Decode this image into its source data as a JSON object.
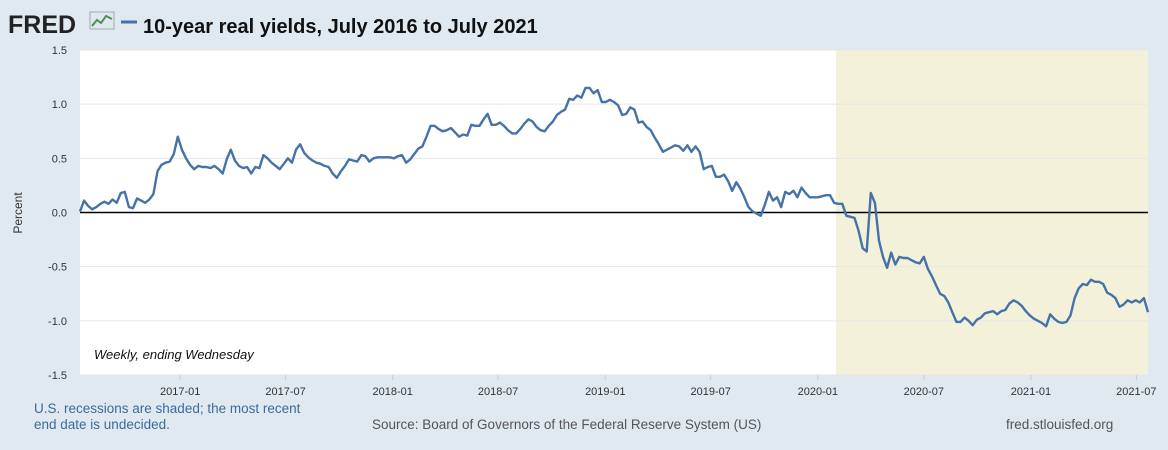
{
  "header": {
    "brand": "FRED",
    "title": "10-year real yields, July 2016 to July 2021"
  },
  "colors": {
    "page_background": "#e1e9f0",
    "plot_background": "#ffffff",
    "series_line": "#4572a7",
    "recession_shade": "#f3f1da",
    "zero_line": "#000000",
    "footer_text": "#3a6aa0"
  },
  "footer": {
    "recession_note_line1": "U.S. recessions are shaded; the most recent",
    "recession_note_line2": "end date is undecided.",
    "source": "Source: Board of Governors of the Federal Reserve System (US)",
    "site": "fred.stlouisfed.org"
  },
  "chart_data": {
    "type": "line",
    "title": "10-year real yields, July 2016 to July 2021",
    "xlabel": "",
    "ylabel": "Percent",
    "annotation": "Weekly, ending Wednesday",
    "ylim": [
      -1.5,
      1.5
    ],
    "xlim": [
      "2016-07-13",
      "2021-07-21"
    ],
    "y_ticks": [
      1.5,
      1.0,
      0.5,
      0.0,
      -0.5,
      -1.0,
      -1.5
    ],
    "y_tick_labels": [
      "1.5",
      "1.0",
      "0.5",
      "0.0",
      "-0.5",
      "-1.0",
      "-1.5"
    ],
    "x_ticks": [
      "2017-01-01",
      "2017-07-01",
      "2018-01-01",
      "2018-07-01",
      "2019-01-01",
      "2019-07-01",
      "2020-01-01",
      "2020-07-01",
      "2021-01-01",
      "2021-07-01"
    ],
    "x_tick_labels": [
      "2017-01",
      "2017-07",
      "2018-01",
      "2018-07",
      "2019-01",
      "2019-07",
      "2020-01",
      "2020-07",
      "2021-01",
      "2021-07"
    ],
    "grid": true,
    "legend": "none",
    "recession": {
      "start": "2020-02-01",
      "end": "2021-07-21"
    },
    "series": [
      {
        "name": "10-year real yields, July 2016 to July 2021",
        "points": [
          [
            "2016-07-13",
            0.01
          ],
          [
            "2016-07-20",
            0.11
          ],
          [
            "2016-07-27",
            0.06
          ],
          [
            "2016-08-03",
            0.03
          ],
          [
            "2016-08-10",
            0.05
          ],
          [
            "2016-08-17",
            0.08
          ],
          [
            "2016-08-24",
            0.1
          ],
          [
            "2016-08-31",
            0.08
          ],
          [
            "2016-09-07",
            0.12
          ],
          [
            "2016-09-14",
            0.09
          ],
          [
            "2016-09-21",
            0.18
          ],
          [
            "2016-09-28",
            0.19
          ],
          [
            "2016-10-05",
            0.05
          ],
          [
            "2016-10-12",
            0.04
          ],
          [
            "2016-10-19",
            0.13
          ],
          [
            "2016-10-26",
            0.11
          ],
          [
            "2016-11-02",
            0.09
          ],
          [
            "2016-11-09",
            0.12
          ],
          [
            "2016-11-16",
            0.17
          ],
          [
            "2016-11-23",
            0.38
          ],
          [
            "2016-11-30",
            0.44
          ],
          [
            "2016-12-07",
            0.46
          ],
          [
            "2016-12-14",
            0.47
          ],
          [
            "2016-12-21",
            0.54
          ],
          [
            "2016-12-28",
            0.7
          ],
          [
            "2017-01-04",
            0.58
          ],
          [
            "2017-01-11",
            0.5
          ],
          [
            "2017-01-18",
            0.44
          ],
          [
            "2017-01-25",
            0.4
          ],
          [
            "2017-02-01",
            0.43
          ],
          [
            "2017-02-08",
            0.42
          ],
          [
            "2017-02-15",
            0.42
          ],
          [
            "2017-02-22",
            0.41
          ],
          [
            "2017-03-01",
            0.43
          ],
          [
            "2017-03-08",
            0.4
          ],
          [
            "2017-03-15",
            0.36
          ],
          [
            "2017-03-22",
            0.49
          ],
          [
            "2017-03-29",
            0.58
          ],
          [
            "2017-04-05",
            0.48
          ],
          [
            "2017-04-12",
            0.43
          ],
          [
            "2017-04-19",
            0.41
          ],
          [
            "2017-04-26",
            0.42
          ],
          [
            "2017-05-03",
            0.36
          ],
          [
            "2017-05-10",
            0.42
          ],
          [
            "2017-05-17",
            0.41
          ],
          [
            "2017-05-24",
            0.53
          ],
          [
            "2017-05-31",
            0.5
          ],
          [
            "2017-06-07",
            0.46
          ],
          [
            "2017-06-14",
            0.43
          ],
          [
            "2017-06-21",
            0.4
          ],
          [
            "2017-06-28",
            0.45
          ],
          [
            "2017-07-05",
            0.5
          ],
          [
            "2017-07-12",
            0.46
          ],
          [
            "2017-07-19",
            0.58
          ],
          [
            "2017-07-26",
            0.63
          ],
          [
            "2017-08-02",
            0.55
          ],
          [
            "2017-08-09",
            0.51
          ],
          [
            "2017-08-16",
            0.48
          ],
          [
            "2017-08-23",
            0.46
          ],
          [
            "2017-08-30",
            0.45
          ],
          [
            "2017-09-06",
            0.43
          ],
          [
            "2017-09-13",
            0.42
          ],
          [
            "2017-09-20",
            0.36
          ],
          [
            "2017-09-27",
            0.32
          ],
          [
            "2017-10-04",
            0.38
          ],
          [
            "2017-10-11",
            0.43
          ],
          [
            "2017-10-18",
            0.49
          ],
          [
            "2017-10-25",
            0.48
          ],
          [
            "2017-11-01",
            0.47
          ],
          [
            "2017-11-08",
            0.53
          ],
          [
            "2017-11-15",
            0.52
          ],
          [
            "2017-11-22",
            0.47
          ],
          [
            "2017-11-29",
            0.5
          ],
          [
            "2017-12-06",
            0.51
          ],
          [
            "2017-12-13",
            0.51
          ],
          [
            "2017-12-20",
            0.51
          ],
          [
            "2017-12-27",
            0.51
          ],
          [
            "2018-01-03",
            0.5
          ],
          [
            "2018-01-10",
            0.52
          ],
          [
            "2018-01-17",
            0.53
          ],
          [
            "2018-01-24",
            0.46
          ],
          [
            "2018-01-31",
            0.49
          ],
          [
            "2018-02-07",
            0.54
          ],
          [
            "2018-02-14",
            0.59
          ],
          [
            "2018-02-21",
            0.61
          ],
          [
            "2018-02-28",
            0.7
          ],
          [
            "2018-03-07",
            0.8
          ],
          [
            "2018-03-14",
            0.8
          ],
          [
            "2018-03-21",
            0.77
          ],
          [
            "2018-03-28",
            0.75
          ],
          [
            "2018-04-04",
            0.76
          ],
          [
            "2018-04-11",
            0.78
          ],
          [
            "2018-04-18",
            0.74
          ],
          [
            "2018-04-25",
            0.7
          ],
          [
            "2018-05-02",
            0.72
          ],
          [
            "2018-05-09",
            0.71
          ],
          [
            "2018-05-16",
            0.81
          ],
          [
            "2018-05-23",
            0.8
          ],
          [
            "2018-05-30",
            0.8
          ],
          [
            "2018-06-06",
            0.86
          ],
          [
            "2018-06-13",
            0.91
          ],
          [
            "2018-06-20",
            0.81
          ],
          [
            "2018-06-27",
            0.81
          ],
          [
            "2018-07-04",
            0.83
          ],
          [
            "2018-07-11",
            0.8
          ],
          [
            "2018-07-18",
            0.76
          ],
          [
            "2018-07-25",
            0.73
          ],
          [
            "2018-08-01",
            0.73
          ],
          [
            "2018-08-08",
            0.77
          ],
          [
            "2018-08-15",
            0.82
          ],
          [
            "2018-08-22",
            0.86
          ],
          [
            "2018-08-29",
            0.84
          ],
          [
            "2018-09-05",
            0.79
          ],
          [
            "2018-09-12",
            0.76
          ],
          [
            "2018-09-19",
            0.75
          ],
          [
            "2018-09-26",
            0.8
          ],
          [
            "2018-10-03",
            0.84
          ],
          [
            "2018-10-10",
            0.9
          ],
          [
            "2018-10-17",
            0.93
          ],
          [
            "2018-10-24",
            0.95
          ],
          [
            "2018-10-31",
            1.05
          ],
          [
            "2018-11-07",
            1.04
          ],
          [
            "2018-11-14",
            1.08
          ],
          [
            "2018-11-21",
            1.06
          ],
          [
            "2018-11-28",
            1.15
          ],
          [
            "2018-12-05",
            1.15
          ],
          [
            "2018-12-12",
            1.1
          ],
          [
            "2018-12-19",
            1.13
          ],
          [
            "2018-12-26",
            1.02
          ],
          [
            "2019-01-02",
            1.02
          ],
          [
            "2019-01-09",
            1.04
          ],
          [
            "2019-01-16",
            1.02
          ],
          [
            "2019-01-23",
            0.99
          ],
          [
            "2019-01-30",
            0.9
          ],
          [
            "2019-02-06",
            0.91
          ],
          [
            "2019-02-13",
            0.97
          ],
          [
            "2019-02-20",
            0.95
          ],
          [
            "2019-02-27",
            0.83
          ],
          [
            "2019-03-06",
            0.84
          ],
          [
            "2019-03-13",
            0.79
          ],
          [
            "2019-03-20",
            0.76
          ],
          [
            "2019-03-27",
            0.69
          ],
          [
            "2019-04-03",
            0.63
          ],
          [
            "2019-04-10",
            0.56
          ],
          [
            "2019-04-17",
            0.58
          ],
          [
            "2019-04-24",
            0.6
          ],
          [
            "2019-05-01",
            0.62
          ],
          [
            "2019-05-08",
            0.61
          ],
          [
            "2019-05-15",
            0.57
          ],
          [
            "2019-05-22",
            0.62
          ],
          [
            "2019-05-29",
            0.56
          ],
          [
            "2019-06-05",
            0.61
          ],
          [
            "2019-06-12",
            0.56
          ],
          [
            "2019-06-19",
            0.4
          ],
          [
            "2019-06-26",
            0.42
          ],
          [
            "2019-07-03",
            0.43
          ],
          [
            "2019-07-10",
            0.33
          ],
          [
            "2019-07-17",
            0.33
          ],
          [
            "2019-07-24",
            0.35
          ],
          [
            "2019-07-31",
            0.29
          ],
          [
            "2019-08-07",
            0.2
          ],
          [
            "2019-08-14",
            0.28
          ],
          [
            "2019-08-21",
            0.22
          ],
          [
            "2019-08-28",
            0.14
          ],
          [
            "2019-09-04",
            0.05
          ],
          [
            "2019-09-11",
            0.01
          ],
          [
            "2019-09-18",
            -0.01
          ],
          [
            "2019-09-25",
            -0.03
          ],
          [
            "2019-10-02",
            0.07
          ],
          [
            "2019-10-09",
            0.19
          ],
          [
            "2019-10-16",
            0.11
          ],
          [
            "2019-10-23",
            0.14
          ],
          [
            "2019-10-30",
            0.05
          ],
          [
            "2019-11-06",
            0.19
          ],
          [
            "2019-11-13",
            0.17
          ],
          [
            "2019-11-20",
            0.2
          ],
          [
            "2019-11-27",
            0.14
          ],
          [
            "2019-12-04",
            0.23
          ],
          [
            "2019-12-11",
            0.18
          ],
          [
            "2019-12-18",
            0.14
          ],
          [
            "2019-12-25",
            0.14
          ],
          [
            "2020-01-01",
            0.14
          ],
          [
            "2020-01-08",
            0.15
          ],
          [
            "2020-01-15",
            0.16
          ],
          [
            "2020-01-22",
            0.16
          ],
          [
            "2020-01-29",
            0.09
          ],
          [
            "2020-02-05",
            0.08
          ],
          [
            "2020-02-12",
            0.08
          ],
          [
            "2020-02-19",
            -0.03
          ],
          [
            "2020-02-26",
            -0.04
          ],
          [
            "2020-03-04",
            -0.05
          ],
          [
            "2020-03-11",
            -0.17
          ],
          [
            "2020-03-18",
            -0.33
          ],
          [
            "2020-03-25",
            -0.36
          ],
          [
            "2020-04-01",
            0.18
          ],
          [
            "2020-04-08",
            0.09
          ],
          [
            "2020-04-15",
            -0.26
          ],
          [
            "2020-04-22",
            -0.41
          ],
          [
            "2020-04-29",
            -0.51
          ],
          [
            "2020-05-06",
            -0.37
          ],
          [
            "2020-05-13",
            -0.48
          ],
          [
            "2020-05-20",
            -0.41
          ],
          [
            "2020-05-27",
            -0.42
          ],
          [
            "2020-06-03",
            -0.42
          ],
          [
            "2020-06-10",
            -0.44
          ],
          [
            "2020-06-17",
            -0.46
          ],
          [
            "2020-06-24",
            -0.47
          ],
          [
            "2020-07-01",
            -0.41
          ],
          [
            "2020-07-08",
            -0.52
          ],
          [
            "2020-07-15",
            -0.59
          ],
          [
            "2020-07-22",
            -0.67
          ],
          [
            "2020-07-29",
            -0.75
          ],
          [
            "2020-08-05",
            -0.77
          ],
          [
            "2020-08-12",
            -0.83
          ],
          [
            "2020-08-19",
            -0.92
          ],
          [
            "2020-08-26",
            -1.01
          ],
          [
            "2020-09-02",
            -1.01
          ],
          [
            "2020-09-09",
            -0.97
          ],
          [
            "2020-09-16",
            -1.0
          ],
          [
            "2020-09-23",
            -1.04
          ],
          [
            "2020-09-30",
            -0.99
          ],
          [
            "2020-10-07",
            -0.97
          ],
          [
            "2020-10-14",
            -0.93
          ],
          [
            "2020-10-21",
            -0.92
          ],
          [
            "2020-10-28",
            -0.91
          ],
          [
            "2020-11-04",
            -0.94
          ],
          [
            "2020-11-11",
            -0.91
          ],
          [
            "2020-11-18",
            -0.9
          ],
          [
            "2020-11-25",
            -0.84
          ],
          [
            "2020-12-02",
            -0.81
          ],
          [
            "2020-12-09",
            -0.83
          ],
          [
            "2020-12-16",
            -0.86
          ],
          [
            "2020-12-23",
            -0.91
          ],
          [
            "2020-12-30",
            -0.95
          ],
          [
            "2021-01-06",
            -0.98
          ],
          [
            "2021-01-13",
            -1.0
          ],
          [
            "2021-01-20",
            -1.02
          ],
          [
            "2021-01-27",
            -1.05
          ],
          [
            "2021-02-03",
            -0.94
          ],
          [
            "2021-02-10",
            -0.98
          ],
          [
            "2021-02-17",
            -1.01
          ],
          [
            "2021-02-24",
            -1.02
          ],
          [
            "2021-03-03",
            -1.01
          ],
          [
            "2021-03-10",
            -0.95
          ],
          [
            "2021-03-17",
            -0.79
          ],
          [
            "2021-03-24",
            -0.7
          ],
          [
            "2021-03-31",
            -0.66
          ],
          [
            "2021-04-07",
            -0.67
          ],
          [
            "2021-04-14",
            -0.62
          ],
          [
            "2021-04-21",
            -0.64
          ],
          [
            "2021-04-28",
            -0.64
          ],
          [
            "2021-05-05",
            -0.66
          ],
          [
            "2021-05-12",
            -0.74
          ],
          [
            "2021-05-19",
            -0.76
          ],
          [
            "2021-05-26",
            -0.79
          ],
          [
            "2021-06-02",
            -0.87
          ],
          [
            "2021-06-09",
            -0.85
          ],
          [
            "2021-06-16",
            -0.81
          ],
          [
            "2021-06-23",
            -0.83
          ],
          [
            "2021-06-30",
            -0.81
          ],
          [
            "2021-07-07",
            -0.83
          ],
          [
            "2021-07-14",
            -0.79
          ],
          [
            "2021-07-21",
            -0.92
          ]
        ]
      }
    ]
  }
}
